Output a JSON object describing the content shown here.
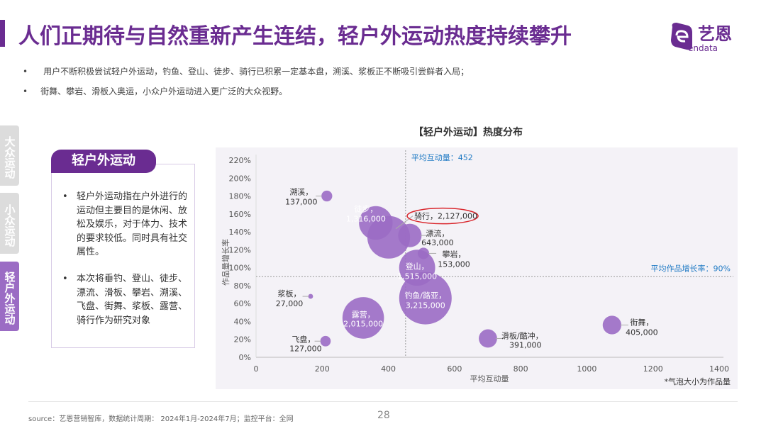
{
  "header": {
    "title": "人们正期待与自然重新产生连结，轻户外运动热度持续攀升",
    "logo_text": "艺恩",
    "logo_sub": "endata",
    "brand_color": "#6a2c91"
  },
  "bullets": [
    "用户不断积极尝试轻户外运动，钓鱼、登山、徒步、骑行已积累一定基本盘，溯溪、浆板正不断吸引尝鲜者入局；",
    "街舞、攀岩、滑板入奥运，小众户外运动进入更广泛的大众视野。"
  ],
  "side_tabs": [
    {
      "label": "大众运动",
      "active": false
    },
    {
      "label": "小众运动",
      "active": false
    },
    {
      "label": "轻户外运动",
      "active": true
    }
  ],
  "card": {
    "title": "轻户外运动",
    "paragraphs": [
      "轻户外运动指在户外进行的运动但主要目的是休闲、放松及娱乐，对于体力、技术的要求较低。同时具有社交属性。",
      "本次将垂钓、登山、徒步、漂流、滑板、攀岩、溯溪、飞盘、街舞、浆板、露营、骑行作为研究对象"
    ],
    "bullet": "•"
  },
  "chart_data": {
    "type": "scatter",
    "subtype": "bubble",
    "title": "【轻户外运动】热度分布",
    "xlabel": "平均互动量",
    "ylabel": "作品量增长率",
    "xlim": [
      0,
      1400
    ],
    "ylim": [
      0,
      220
    ],
    "xticks": [
      "0",
      "200",
      "400",
      "600",
      "800",
      "1000",
      "1200",
      "1400"
    ],
    "yticks": [
      "0%",
      "20%",
      "40%",
      "60%",
      "80%",
      "100%",
      "120%",
      "140%",
      "160%",
      "180%",
      "200%",
      "220%"
    ],
    "grid": false,
    "bubble_color": "#9b6cc4",
    "highlight_color": "#d9262c",
    "note": "*气泡大小为作品量",
    "ref_lines": {
      "x": 452,
      "x_label": "平均互动量：452",
      "y": 90,
      "y_label": "平均作品增长率：90%",
      "color": "#1f7ac4"
    },
    "points": [
      {
        "name": "溯溪",
        "size_label": "137,000",
        "size": 137000,
        "x": 214,
        "y": 180
      },
      {
        "name": "骑行",
        "size_label": "2,127,000",
        "size": 2127000,
        "x": 401,
        "y": 134,
        "highlight": true
      },
      {
        "name": "徒步",
        "size_label": "1,316,000",
        "size": 1316000,
        "x": 362,
        "y": 150
      },
      {
        "name": "漂流",
        "size_label": "643,000",
        "size": 643000,
        "x": 465,
        "y": 136
      },
      {
        "name": "攀岩",
        "size_label": "153,000",
        "size": 153000,
        "x": 506,
        "y": 116
      },
      {
        "name": "钓鱼/路亚",
        "size_label": "3,215,000",
        "size": 3215000,
        "x": 512,
        "y": 66
      },
      {
        "name": "登山",
        "size_label": "1,515,000",
        "size": 1515000,
        "x": 487,
        "y": 100
      },
      {
        "name": "露营",
        "size_label": "2,015,000",
        "size": 2015000,
        "x": 324,
        "y": 44
      },
      {
        "name": "浆板",
        "size_label": "27,000",
        "size": 27000,
        "x": 165,
        "y": 68
      },
      {
        "name": "飞盘",
        "size_label": "127,000",
        "size": 127000,
        "x": 210,
        "y": 18
      },
      {
        "name": "滑板/酷冲",
        "size_label": "391,000",
        "size": 391000,
        "x": 701,
        "y": 21
      },
      {
        "name": "街舞",
        "size_label": "405,000",
        "size": 405000,
        "x": 1076,
        "y": 36
      }
    ]
  },
  "footer": {
    "source": "source：艺恩营销智库，数据统计周期： 2024年1月-2024年7月；监控平台：全网",
    "page": "28"
  }
}
